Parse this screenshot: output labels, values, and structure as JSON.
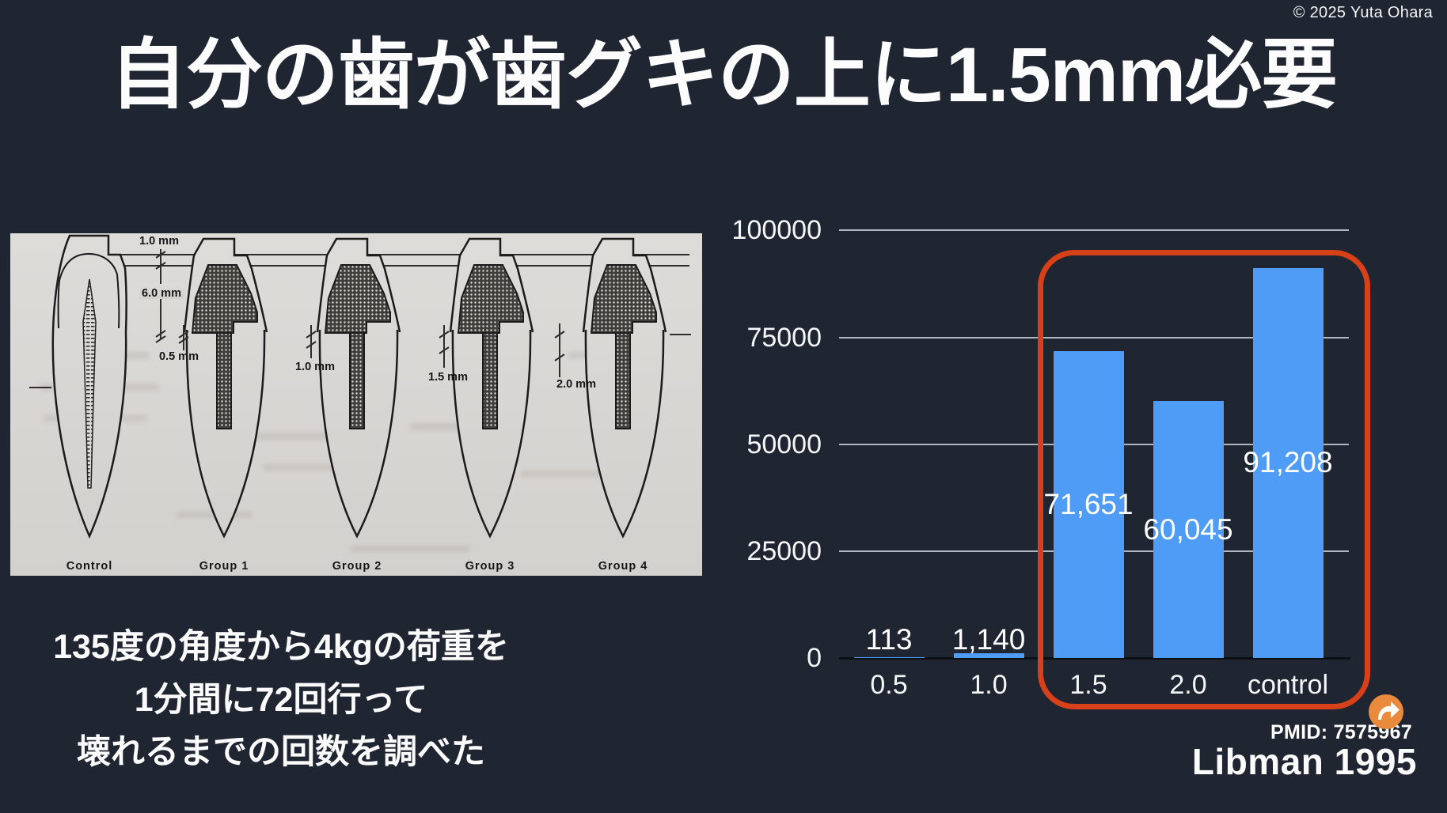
{
  "slide": {
    "copyright": "© 2025 Yuta Ohara",
    "title": "自分の歯が歯グキの上に1.5mm必要",
    "body_lines": [
      "135度の角度から4kgの荷重を",
      "1分間に72回行って",
      "壊れるまでの回数を調べた"
    ],
    "pmid": "PMID: 7575967",
    "citation": "Libman 1995",
    "background_color": "#202532",
    "share_icon": "curved-arrow-right-icon",
    "share_icon_color": "#e98a3c"
  },
  "figure": {
    "description_labels": {
      "crown_margin": "1.0 mm",
      "core_height": "6.0 mm",
      "g1": "0.5 mm",
      "g2": "1.0 mm",
      "g3": "1.5 mm",
      "g4": "2.0 mm"
    },
    "group_labels": [
      "Control",
      "Group 1",
      "Group 2",
      "Group 3",
      "Group 4"
    ]
  },
  "chart_data": {
    "type": "bar",
    "categories": [
      "0.5",
      "1.0",
      "1.5",
      "2.0",
      "control"
    ],
    "values": [
      113,
      1140,
      71651,
      60045,
      91208
    ],
    "value_labels": [
      "113",
      "1,140",
      "71,651",
      "60,045",
      "91,208"
    ],
    "yticks": [
      "0",
      "25000",
      "50000",
      "75000",
      "100000"
    ],
    "ylim": [
      0,
      100000
    ],
    "grid": "horizontal",
    "legend": "none",
    "bar_color": "#4e9cf5",
    "axis_label_color": "#ffffff",
    "highlight": {
      "categories": [
        "1.5",
        "2.0",
        "control"
      ],
      "box_color": "#d84019"
    }
  }
}
